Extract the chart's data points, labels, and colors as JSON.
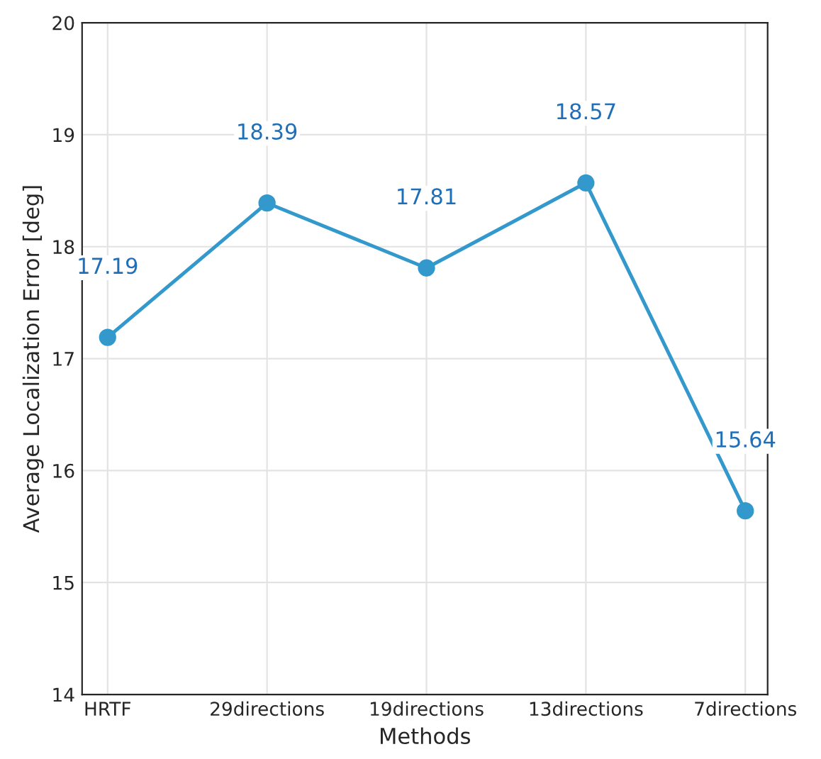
{
  "chart_data": {
    "type": "line",
    "xlabel": "Methods",
    "ylabel": "Average Localization Error [deg]",
    "categories": [
      "HRTF",
      "29directions",
      "19directions",
      "13directions",
      "7directions"
    ],
    "series": [
      {
        "color": "#3399cc",
        "values": [
          17.19,
          18.39,
          17.81,
          18.57,
          15.64
        ]
      }
    ],
    "ylim": [
      14,
      20
    ],
    "yticks": [
      14,
      15,
      16,
      17,
      18,
      19,
      20
    ],
    "grid": true,
    "marker": "circle",
    "line_style": "solid",
    "data_labels": true
  }
}
